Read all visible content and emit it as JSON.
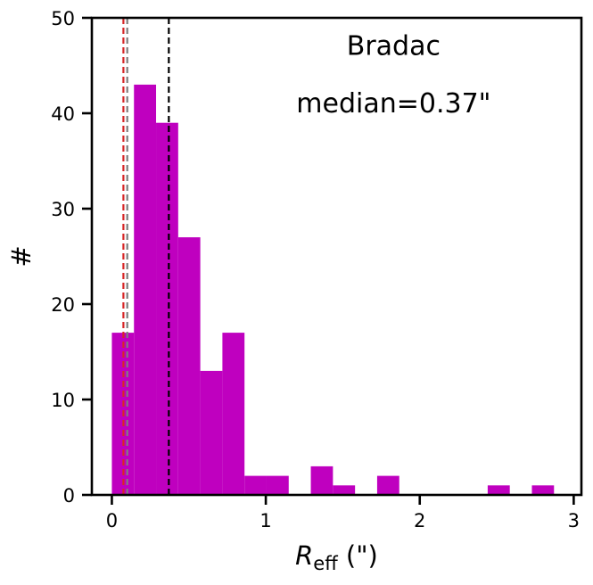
{
  "chart_data": {
    "type": "histogram",
    "title": "",
    "xlabel": {
      "symbol": "R",
      "subscript": "eff",
      "unit": " (\")"
    },
    "ylabel": "#",
    "xlim": [
      -0.13,
      3.05
    ],
    "ylim": [
      0,
      50
    ],
    "xticks": [
      {
        "value": 0,
        "label": "0"
      },
      {
        "value": 1,
        "label": "1"
      },
      {
        "value": 2,
        "label": "2"
      },
      {
        "value": 3,
        "label": "3"
      }
    ],
    "yticks": [
      {
        "value": 0,
        "label": "0"
      },
      {
        "value": 10,
        "label": "10"
      },
      {
        "value": 20,
        "label": "20"
      },
      {
        "value": 30,
        "label": "30"
      },
      {
        "value": 40,
        "label": "40"
      },
      {
        "value": 50,
        "label": "50"
      }
    ],
    "bin_edges": [
      0.0,
      0.1436,
      0.2872,
      0.4308,
      0.5744,
      0.718,
      0.8616,
      1.0052,
      1.1488,
      1.2924,
      1.436,
      1.5796,
      1.7232,
      1.8668,
      2.0104,
      2.154,
      2.2976,
      2.4412,
      2.5848,
      2.7284,
      2.872
    ],
    "counts": [
      17,
      43,
      39,
      27,
      13,
      17,
      2,
      2,
      0,
      3,
      1,
      0,
      2,
      0,
      0,
      0,
      0,
      1,
      0,
      1
    ],
    "bar_color": "#bf00bf",
    "grid": false,
    "annotations": [
      {
        "id": "source",
        "text": "Bradac",
        "x": 1.83,
        "y": 46.1
      },
      {
        "id": "median",
        "text": "median=0.37\"",
        "x": 1.83,
        "y": 40.1
      }
    ],
    "reference_lines": [
      {
        "name": "median",
        "x": 0.37,
        "color": "#000000",
        "style": "dashed"
      },
      {
        "name": "red-line",
        "x": 0.075,
        "color": "#d62728",
        "style": "dashed"
      },
      {
        "name": "gray-line",
        "x": 0.1,
        "color": "#7f7f7f",
        "style": "dashed"
      }
    ]
  }
}
